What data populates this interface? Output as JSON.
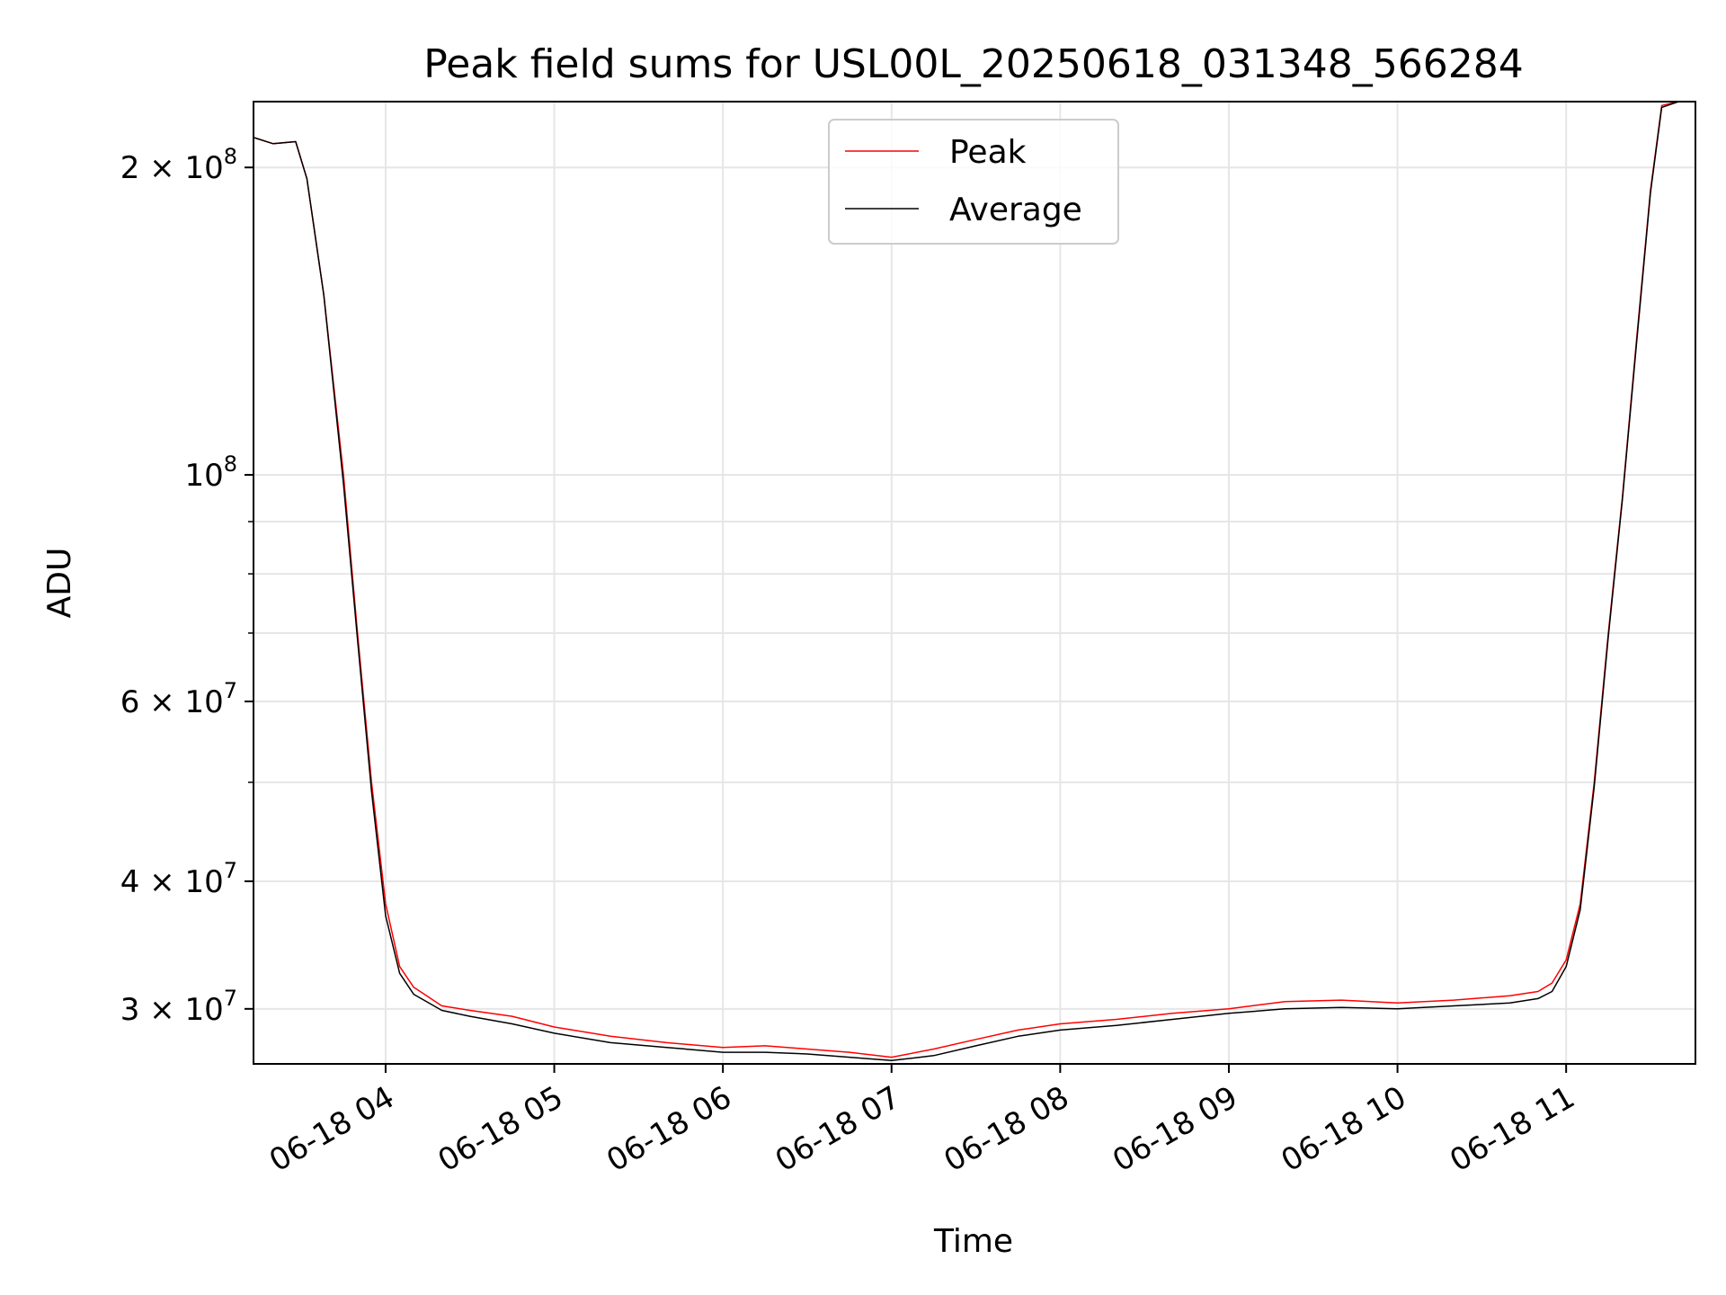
{
  "chart_data": {
    "type": "line",
    "title": "Peak field sums for USL00L_20250618_031348_566284",
    "xlabel": "Time",
    "ylabel": "ADU",
    "yscale": "log",
    "ylim": [
      26500000,
      232000000
    ],
    "xlim": [
      "2025-06-18 03:13",
      "2025-06-18 11:46"
    ],
    "grid": true,
    "legend_position": "upper center",
    "x_tick_labels": [
      "06-18 04",
      "06-18 05",
      "06-18 06",
      "06-18 07",
      "06-18 08",
      "06-18 09",
      "06-18 10",
      "06-18 11"
    ],
    "x_tick_values": [
      "2025-06-18 04:00",
      "2025-06-18 05:00",
      "2025-06-18 06:00",
      "2025-06-18 07:00",
      "2025-06-18 08:00",
      "2025-06-18 09:00",
      "2025-06-18 10:00",
      "2025-06-18 11:00"
    ],
    "y_tick_labels": [
      {
        "value": 200000000,
        "base": "2 × 10",
        "exp": "8"
      },
      {
        "value": 100000000,
        "base": "10",
        "exp": "8"
      },
      {
        "value": 60000000,
        "base": "6 × 10",
        "exp": "7"
      },
      {
        "value": 40000000,
        "base": "4 × 10",
        "exp": "7"
      },
      {
        "value": 30000000,
        "base": "3 × 10",
        "exp": "7"
      }
    ],
    "y_minor_ticks": [
      90000000,
      80000000,
      70000000,
      50000000
    ],
    "series": [
      {
        "name": "Peak",
        "color": "#ff0000",
        "x": [
          "2025-06-18 03:13",
          "2025-06-18 03:20",
          "2025-06-18 03:28",
          "2025-06-18 03:32",
          "2025-06-18 03:38",
          "2025-06-18 03:45",
          "2025-06-18 03:50",
          "2025-06-18 03:55",
          "2025-06-18 04:00",
          "2025-06-18 04:05",
          "2025-06-18 04:10",
          "2025-06-18 04:20",
          "2025-06-18 04:30",
          "2025-06-18 04:45",
          "2025-06-18 05:00",
          "2025-06-18 05:20",
          "2025-06-18 05:40",
          "2025-06-18 06:00",
          "2025-06-18 06:15",
          "2025-06-18 06:30",
          "2025-06-18 06:45",
          "2025-06-18 07:00",
          "2025-06-18 07:15",
          "2025-06-18 07:30",
          "2025-06-18 07:45",
          "2025-06-18 08:00",
          "2025-06-18 08:20",
          "2025-06-18 08:40",
          "2025-06-18 09:00",
          "2025-06-18 09:20",
          "2025-06-18 09:40",
          "2025-06-18 10:00",
          "2025-06-18 10:20",
          "2025-06-18 10:40",
          "2025-06-18 10:50",
          "2025-06-18 10:55",
          "2025-06-18 11:00",
          "2025-06-18 11:05",
          "2025-06-18 11:10",
          "2025-06-18 11:15",
          "2025-06-18 11:20",
          "2025-06-18 11:25",
          "2025-06-18 11:30",
          "2025-06-18 11:34",
          "2025-06-18 11:40"
        ],
        "y": [
          214000000,
          211000000,
          212000000,
          195000000,
          150000000,
          100000000,
          70000000,
          50000000,
          38000000,
          33000000,
          31500000,
          30200000,
          29900000,
          29500000,
          28800000,
          28200000,
          27800000,
          27500000,
          27600000,
          27400000,
          27200000,
          26900000,
          27400000,
          28000000,
          28600000,
          29000000,
          29300000,
          29700000,
          30000000,
          30500000,
          30600000,
          30400000,
          30600000,
          30900000,
          31200000,
          31800000,
          33500000,
          38000000,
          50000000,
          70000000,
          95000000,
          135000000,
          190000000,
          230000000,
          232000000
        ]
      },
      {
        "name": "Average",
        "color": "#000000",
        "x": [
          "2025-06-18 03:13",
          "2025-06-18 03:20",
          "2025-06-18 03:28",
          "2025-06-18 03:32",
          "2025-06-18 03:38",
          "2025-06-18 03:45",
          "2025-06-18 03:50",
          "2025-06-18 03:55",
          "2025-06-18 04:00",
          "2025-06-18 04:05",
          "2025-06-18 04:10",
          "2025-06-18 04:20",
          "2025-06-18 04:30",
          "2025-06-18 04:45",
          "2025-06-18 05:00",
          "2025-06-18 05:20",
          "2025-06-18 05:40",
          "2025-06-18 06:00",
          "2025-06-18 06:15",
          "2025-06-18 06:30",
          "2025-06-18 06:45",
          "2025-06-18 07:00",
          "2025-06-18 07:15",
          "2025-06-18 07:30",
          "2025-06-18 07:45",
          "2025-06-18 08:00",
          "2025-06-18 08:20",
          "2025-06-18 08:40",
          "2025-06-18 09:00",
          "2025-06-18 09:20",
          "2025-06-18 09:40",
          "2025-06-18 10:00",
          "2025-06-18 10:20",
          "2025-06-18 10:40",
          "2025-06-18 10:50",
          "2025-06-18 10:55",
          "2025-06-18 11:00",
          "2025-06-18 11:05",
          "2025-06-18 11:10",
          "2025-06-18 11:15",
          "2025-06-18 11:20",
          "2025-06-18 11:25",
          "2025-06-18 11:30",
          "2025-06-18 11:34",
          "2025-06-18 11:40"
        ],
        "y": [
          214000000,
          211000000,
          212000000,
          195000000,
          150000000,
          98000000,
          69000000,
          49000000,
          37000000,
          32500000,
          31000000,
          29900000,
          29500000,
          29000000,
          28400000,
          27800000,
          27500000,
          27200000,
          27200000,
          27100000,
          26900000,
          26700000,
          27000000,
          27600000,
          28200000,
          28600000,
          28900000,
          29300000,
          29700000,
          30000000,
          30100000,
          30000000,
          30200000,
          30400000,
          30700000,
          31200000,
          33000000,
          37500000,
          49500000,
          69500000,
          94500000,
          134000000,
          189000000,
          229000000,
          232000000
        ]
      }
    ]
  }
}
